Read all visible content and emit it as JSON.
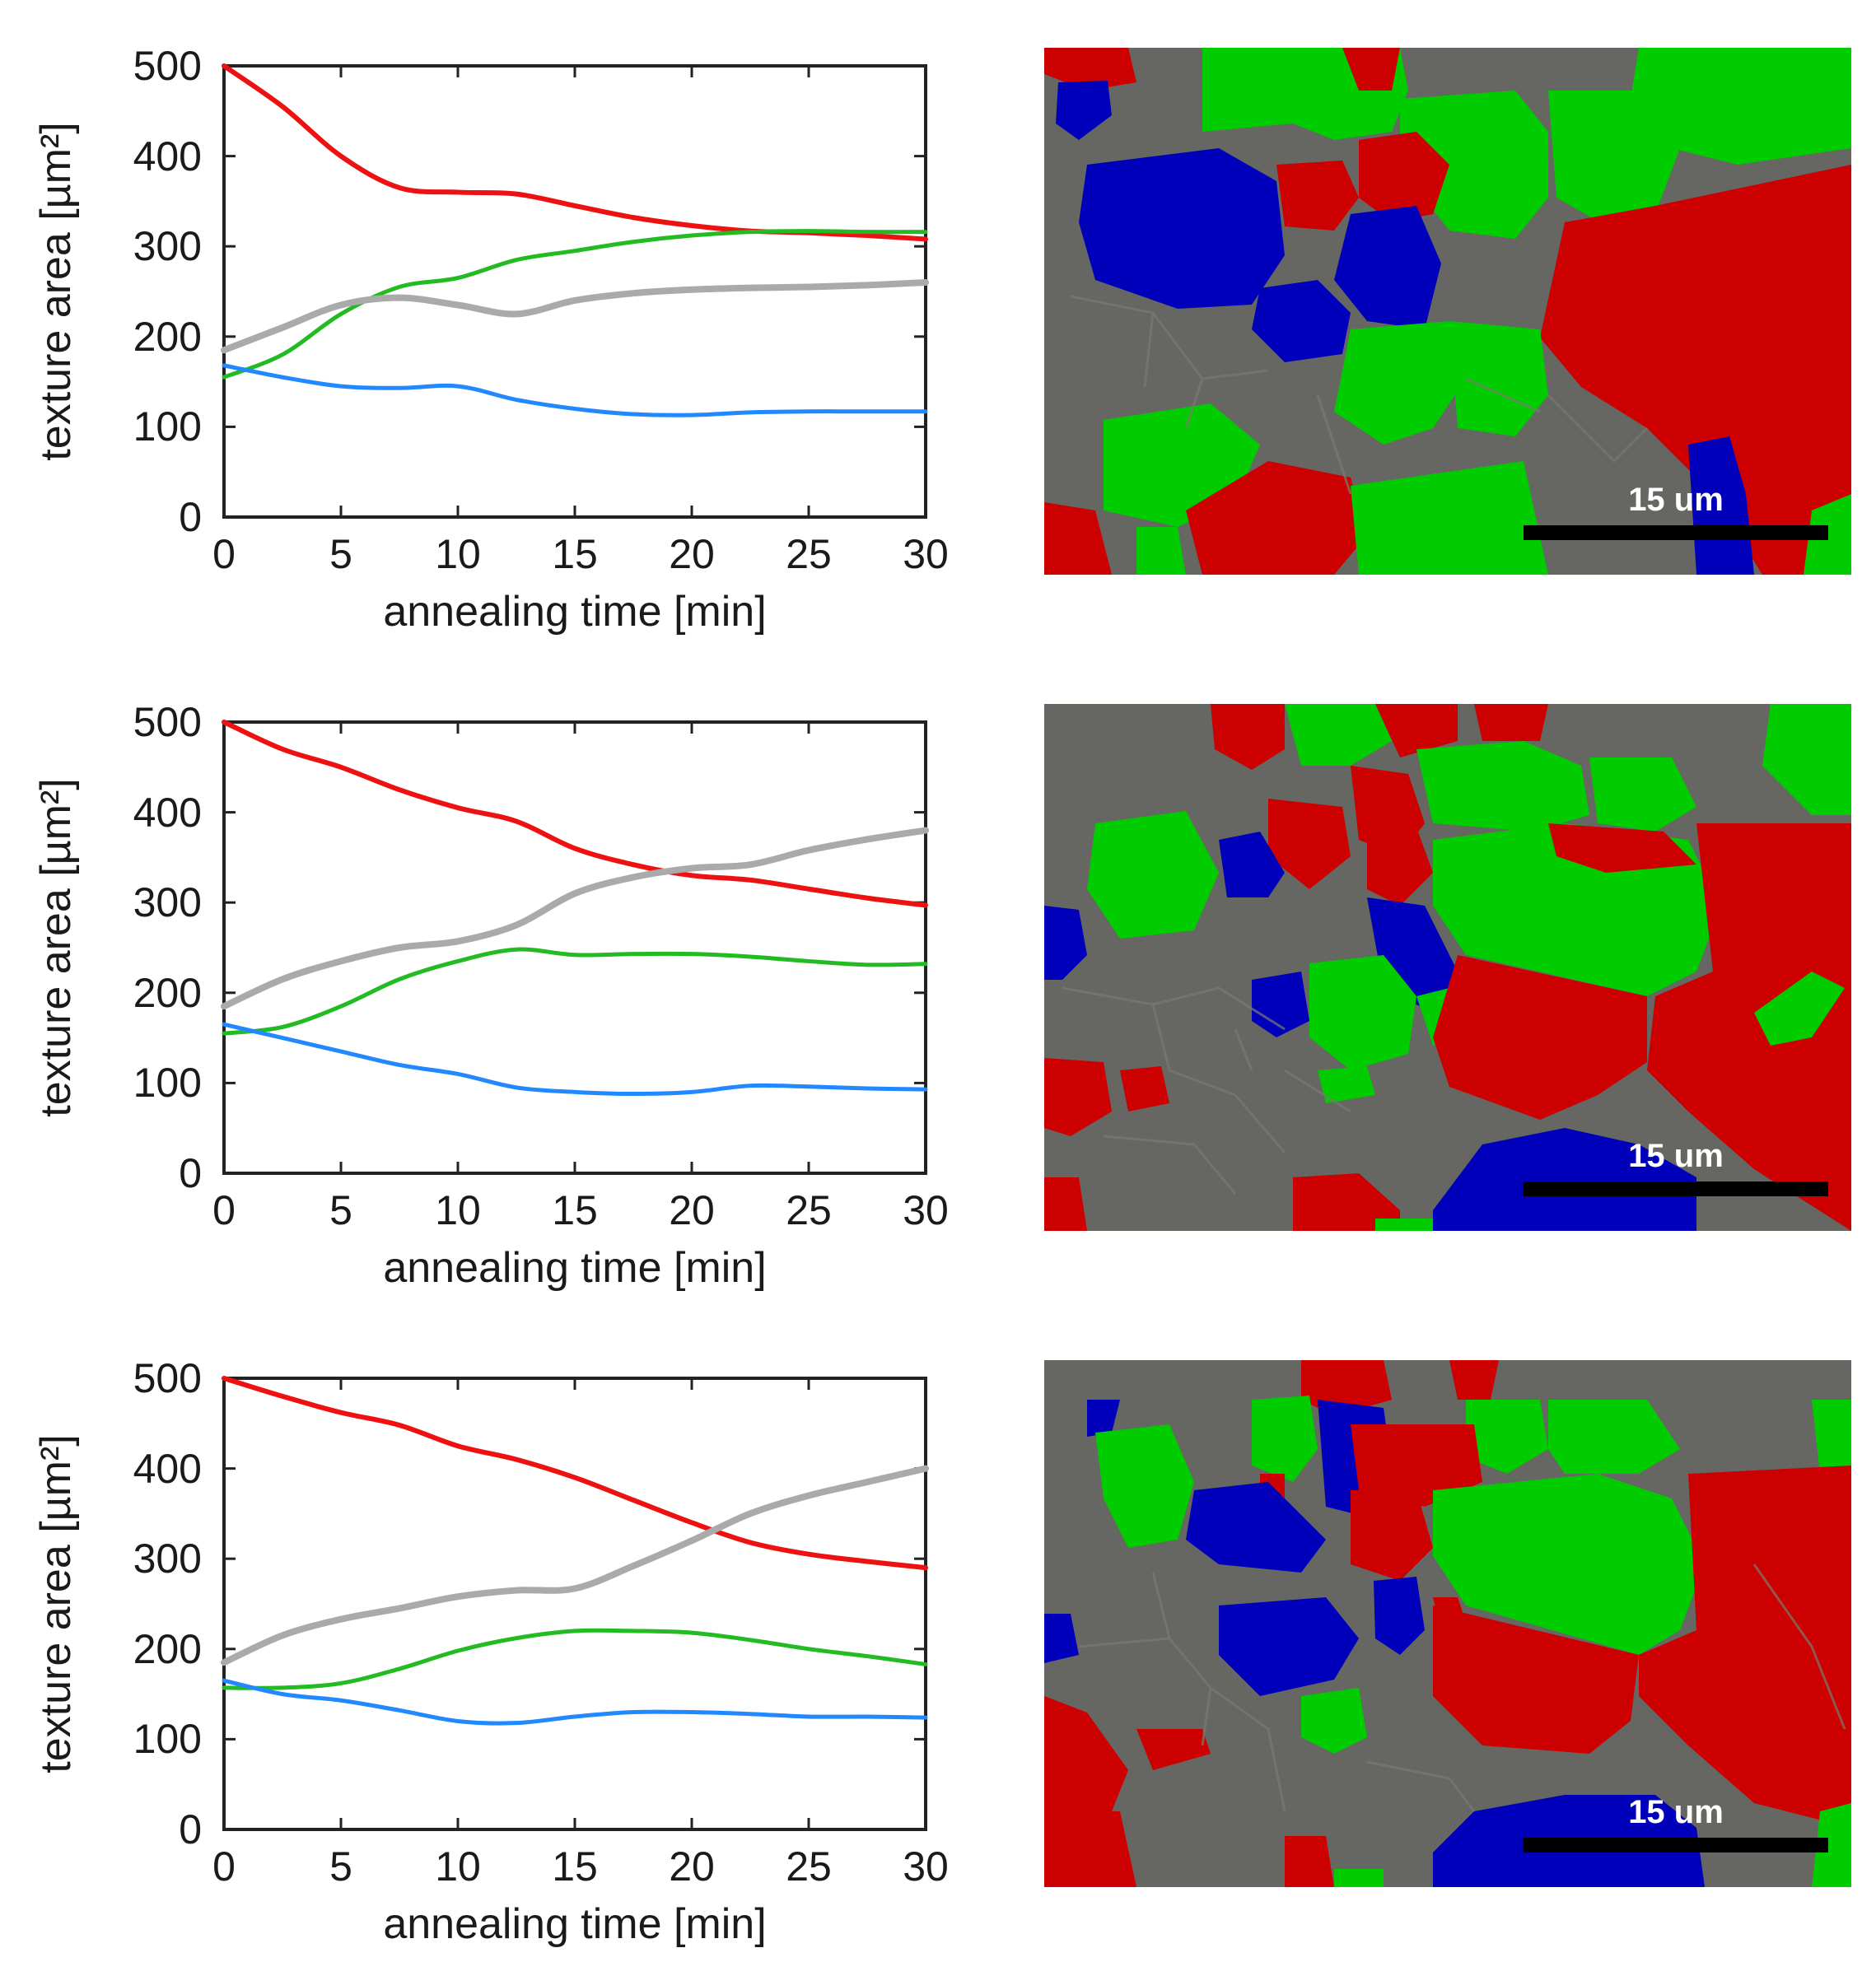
{
  "colors": {
    "red": "#ee1111",
    "green": "#22bb22",
    "gray": "#aaaaaa",
    "blue": "#2288ff",
    "map_red": "#cc0000",
    "map_green": "#00cc00",
    "map_gray": "#666662",
    "map_blue": "#0000bb"
  },
  "scale_bar_label": "15 um",
  "chart_data": [
    {
      "type": "line",
      "xlabel": "annealing time [min]",
      "ylabel": "texture area [µm²]",
      "xlim": [
        0,
        30
      ],
      "ylim": [
        0,
        500
      ],
      "xticks": [
        "0",
        "5",
        "10",
        "15",
        "20",
        "25",
        "30"
      ],
      "yticks": [
        "0",
        "100",
        "200",
        "300",
        "400",
        "500"
      ],
      "x": [
        0,
        2.5,
        5,
        7.5,
        10,
        12.5,
        15,
        17.5,
        20,
        22.5,
        25,
        27.5,
        30
      ],
      "series": [
        {
          "name": "red",
          "values": [
            500,
            455,
            400,
            365,
            360,
            358,
            345,
            332,
            323,
            317,
            315,
            312,
            308
          ]
        },
        {
          "name": "green",
          "values": [
            155,
            180,
            225,
            255,
            265,
            285,
            295,
            305,
            312,
            316,
            317,
            316,
            316
          ]
        },
        {
          "name": "gray",
          "values": [
            185,
            210,
            235,
            243,
            235,
            225,
            240,
            248,
            252,
            254,
            255,
            257,
            260
          ]
        },
        {
          "name": "blue",
          "values": [
            168,
            155,
            145,
            143,
            145,
            130,
            120,
            114,
            113,
            116,
            117,
            117,
            117
          ]
        }
      ]
    },
    {
      "type": "line",
      "xlabel": "annealing time [min]",
      "ylabel": "texture area [µm²]",
      "xlim": [
        0,
        30
      ],
      "ylim": [
        0,
        500
      ],
      "xticks": [
        "0",
        "5",
        "10",
        "15",
        "20",
        "25",
        "30"
      ],
      "yticks": [
        "0",
        "100",
        "200",
        "300",
        "400",
        "500"
      ],
      "x": [
        0,
        2.5,
        5,
        7.5,
        10,
        12.5,
        15,
        17.5,
        20,
        22.5,
        25,
        27.5,
        30
      ],
      "series": [
        {
          "name": "red",
          "values": [
            500,
            470,
            450,
            425,
            405,
            390,
            360,
            342,
            330,
            325,
            315,
            305,
            297
          ]
        },
        {
          "name": "green",
          "values": [
            155,
            162,
            185,
            215,
            235,
            248,
            242,
            243,
            243,
            240,
            235,
            231,
            232
          ]
        },
        {
          "name": "gray",
          "values": [
            185,
            215,
            235,
            250,
            257,
            275,
            310,
            328,
            338,
            342,
            358,
            370,
            380
          ]
        },
        {
          "name": "blue",
          "values": [
            165,
            150,
            135,
            120,
            110,
            95,
            90,
            88,
            90,
            97,
            96,
            94,
            93
          ]
        }
      ]
    },
    {
      "type": "line",
      "xlabel": "annealing time [min]",
      "ylabel": "texture area [µm²]",
      "xlim": [
        0,
        30
      ],
      "ylim": [
        0,
        500
      ],
      "xticks": [
        "0",
        "5",
        "10",
        "15",
        "20",
        "25",
        "30"
      ],
      "yticks": [
        "0",
        "100",
        "200",
        "300",
        "400",
        "500"
      ],
      "x": [
        0,
        2.5,
        5,
        7.5,
        10,
        12.5,
        15,
        17.5,
        20,
        22.5,
        25,
        27.5,
        30
      ],
      "series": [
        {
          "name": "red",
          "values": [
            500,
            480,
            462,
            448,
            425,
            410,
            390,
            365,
            340,
            318,
            305,
            297,
            290
          ]
        },
        {
          "name": "green",
          "values": [
            157,
            157,
            162,
            178,
            198,
            212,
            220,
            220,
            218,
            210,
            200,
            192,
            183
          ]
        },
        {
          "name": "gray",
          "values": [
            185,
            215,
            233,
            245,
            258,
            265,
            267,
            292,
            320,
            350,
            370,
            385,
            400
          ]
        },
        {
          "name": "blue",
          "values": [
            165,
            150,
            143,
            132,
            120,
            118,
            125,
            130,
            130,
            128,
            125,
            125,
            124
          ]
        }
      ]
    }
  ]
}
